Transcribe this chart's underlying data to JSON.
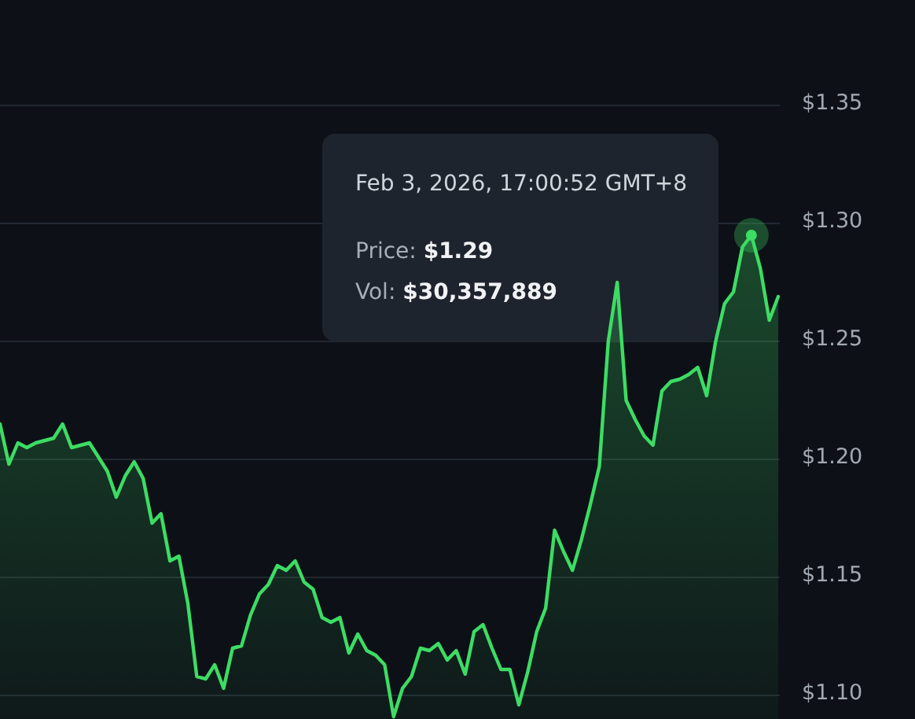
{
  "chart_data": {
    "type": "area",
    "categories": [
      null,
      null,
      null,
      null,
      null,
      null,
      null,
      null,
      null,
      null,
      null,
      null,
      null,
      null,
      null,
      null,
      null,
      null,
      null,
      null,
      null,
      null,
      null,
      null,
      null,
      null,
      null,
      null,
      null,
      null,
      null,
      null,
      null,
      null,
      null,
      null,
      null,
      null,
      null,
      null,
      null,
      null,
      null,
      null,
      null,
      null,
      null,
      null,
      null,
      null,
      null,
      null,
      null,
      null,
      null,
      null,
      null,
      null,
      null,
      null,
      null,
      null,
      null,
      null,
      null,
      null,
      null,
      null,
      null,
      null,
      null,
      null,
      null,
      null,
      null,
      null,
      null,
      null,
      null,
      null,
      null,
      null,
      null,
      null,
      null,
      null,
      null,
      null
    ],
    "series": [
      {
        "color": "#3ddc64",
        "values": [
          1.215,
          1.198,
          1.207,
          1.205,
          1.207,
          1.208,
          1.209,
          1.215,
          1.205,
          1.206,
          1.207,
          1.201,
          1.195,
          1.184,
          1.193,
          1.199,
          1.192,
          1.173,
          1.177,
          1.157,
          1.159,
          1.139,
          1.108,
          1.107,
          1.113,
          1.103,
          1.12,
          1.121,
          1.134,
          1.143,
          1.147,
          1.155,
          1.153,
          1.157,
          1.148,
          1.145,
          1.133,
          1.131,
          1.133,
          1.118,
          1.126,
          1.119,
          1.117,
          1.113,
          1.091,
          1.103,
          1.108,
          1.12,
          1.119,
          1.122,
          1.115,
          1.119,
          1.109,
          1.127,
          1.13,
          1.12,
          1.111,
          1.111,
          1.096,
          1.11,
          1.127,
          1.137,
          1.17,
          1.161,
          1.153,
          1.166,
          1.181,
          1.197,
          1.25,
          1.275,
          1.225,
          1.217,
          1.21,
          1.206,
          1.229,
          1.233,
          1.234,
          1.236,
          1.239,
          1.227,
          1.25,
          1.266,
          1.271,
          1.29,
          1.295,
          1.281,
          1.259,
          1.269
        ]
      }
    ],
    "ylim": [
      1.09,
      1.35
    ],
    "yticks": [
      {
        "value": 1.1,
        "label": "$1.10"
      },
      {
        "value": 1.15,
        "label": "$1.15"
      },
      {
        "value": 1.2,
        "label": "$1.20"
      },
      {
        "value": 1.25,
        "label": "$1.25"
      },
      {
        "value": 1.3,
        "label": "$1.30"
      },
      {
        "value": 1.35,
        "label": "$1.35"
      }
    ],
    "grid": "y",
    "tick_labels": "y",
    "annotations": [
      "Feb 3, 2026, 17:00:52 GMT+8",
      "Price:",
      "$1.29",
      "Vol:",
      "$30,357,889"
    ]
  }
}
